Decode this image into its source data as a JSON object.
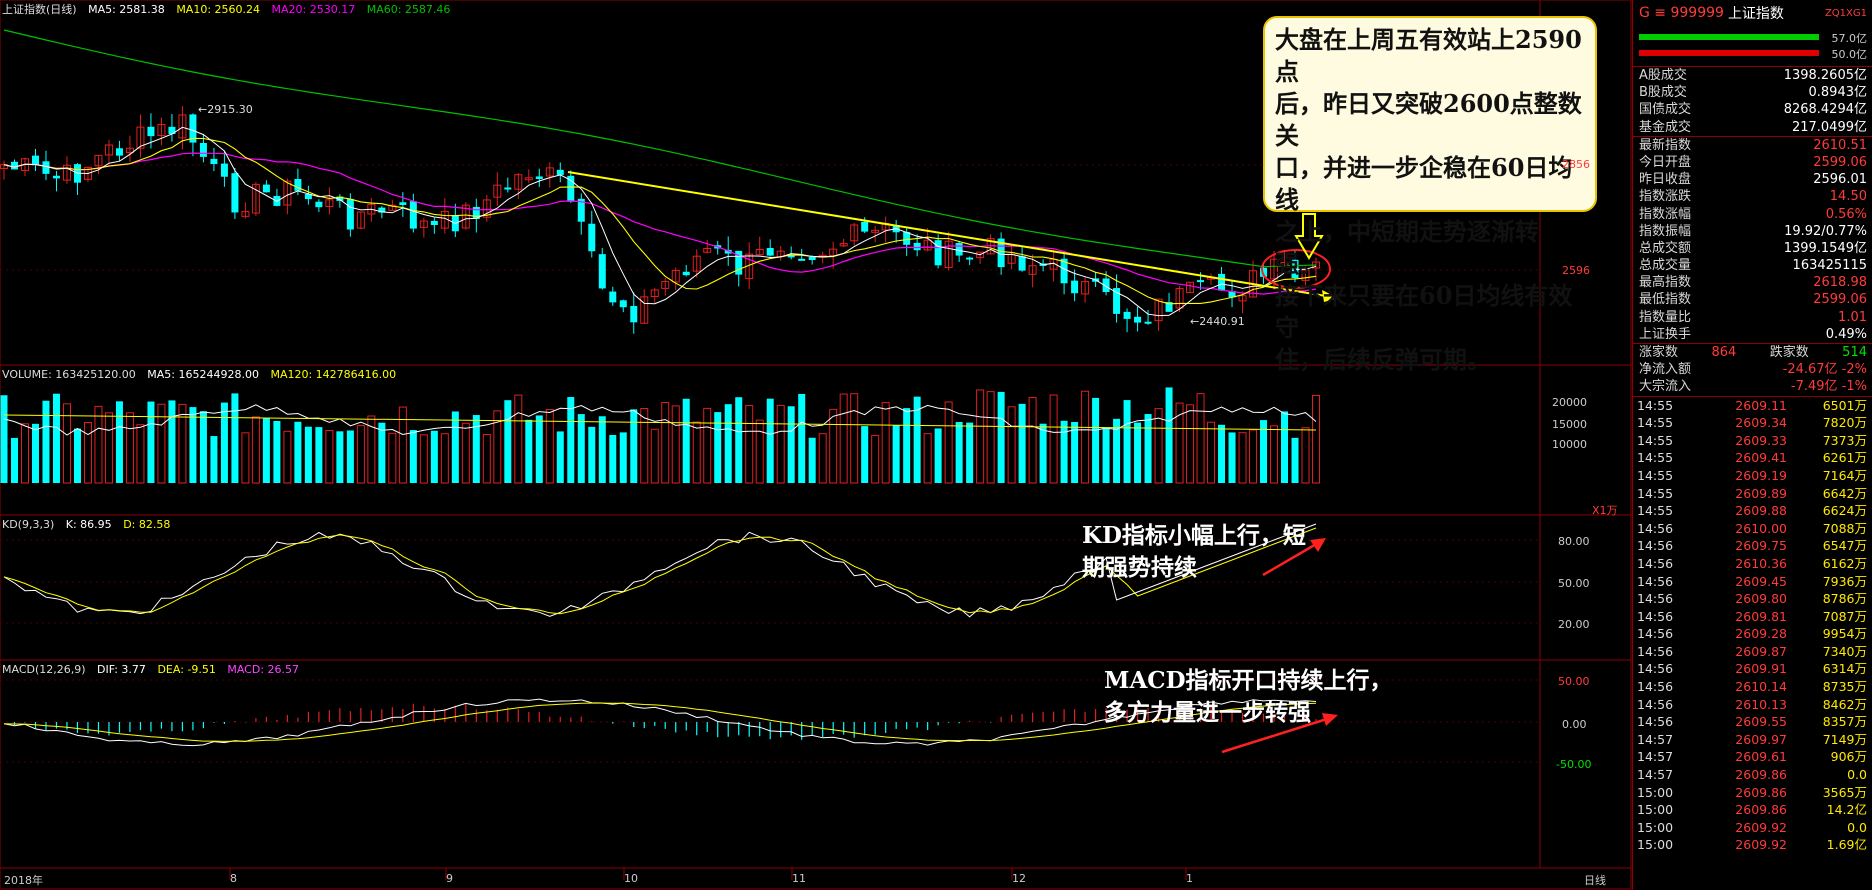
{
  "header": {
    "index_name": "上证指数(日线)",
    "ma5": "MA5: 2581.38",
    "ma10": "MA10: 2560.24",
    "ma20": "MA20: 2530.17",
    "ma60": "MA60: 2587.46",
    "volume": "VOLUME: 163425120.00",
    "vol_ma5": "MA5: 165244928.00",
    "vol_ma120": "MA120: 142786416.00",
    "kd_name": "KD(9,3,3)",
    "kd_k": "K: 86.95",
    "kd_d": "D: 82.58",
    "macd_name": "MACD(12,26,9)",
    "macd_dif": "DIF: 3.77",
    "macd_dea": "DEA: -9.51",
    "macd_macd": "MACD: 26.57"
  },
  "annotations": {
    "box": [
      "大盘在上周五有效站上2590点",
      "后，昨日又突破2600点整数关",
      "口，并进一步企稳在60日均线",
      "之上，中短期走势逐渐转强。",
      "接下来只要在60日均线有效守",
      "住，后续反弹可期。"
    ],
    "kd_note": [
      "KD指标小幅上行，短",
      "期强势持续"
    ],
    "macd_note": [
      "MACD指标开口持续上行，",
      "多方力量进一步转强"
    ],
    "high_label": "2915.30",
    "low_label": "2440.91"
  },
  "axes": {
    "price_ticks": [
      "2856",
      "2596"
    ],
    "volume_ticks": [
      "20000",
      "15000",
      "10000"
    ],
    "volume_unit": "X1万",
    "kd_ticks": [
      "80.00",
      "50.00",
      "20.00"
    ],
    "macd_ticks": [
      "50.00",
      "0.00",
      "-50.00"
    ],
    "month_labels": [
      "2018年",
      "8",
      "9",
      "10",
      "11",
      "12",
      "1"
    ],
    "period": "日线"
  },
  "colors": {
    "up": "#e02020",
    "down": "#00ffff",
    "ma5": "#ffffff",
    "ma10": "#ffff00",
    "ma20": "#ff00ff",
    "ma60": "#00c000",
    "trend": "#ffff00"
  },
  "chart_data": {
    "type": "candlestick",
    "title": "上证指数(日线)",
    "x_months": [
      "2018年",
      "8",
      "9",
      "10",
      "11",
      "12",
      "1"
    ],
    "price_range": [
      2440.91,
      2915.3
    ],
    "annotated_high": 2915.3,
    "annotated_low": 2440.91,
    "ma": {
      "MA5": 2581.38,
      "MA10": 2560.24,
      "MA20": 2530.17,
      "MA60": 2587.46
    },
    "volume": {
      "last": 163425120.0,
      "MA5": 165244928.0,
      "MA120": 142786416.0
    },
    "kd": {
      "K": 86.95,
      "D": 82.58,
      "ticks": [
        20,
        50,
        80
      ]
    },
    "macd": {
      "DIF": 3.77,
      "DEA": -9.51,
      "MACD": 26.57,
      "ticks": [
        -50,
        0,
        50
      ]
    }
  },
  "panel": {
    "code": "G ≡ 999999",
    "name": "上证指数",
    "tag": "ZQ1XG1",
    "bar_top": "57.0亿",
    "bar_bottom": "50.0亿",
    "rows1": [
      {
        "k": "A股成交",
        "v": "1398.2605亿",
        "c": "white"
      },
      {
        "k": "B股成交",
        "v": "0.8943亿",
        "c": "white"
      },
      {
        "k": "国债成交",
        "v": "8268.4294亿",
        "c": "white"
      },
      {
        "k": "基金成交",
        "v": "217.0499亿",
        "c": "white"
      }
    ],
    "rows2": [
      {
        "k": "最新指数",
        "v": "2610.51",
        "c": "red"
      },
      {
        "k": "今日开盘",
        "v": "2599.06",
        "c": "red"
      },
      {
        "k": "昨日收盘",
        "v": "2596.01",
        "c": "white"
      },
      {
        "k": "指数涨跌",
        "v": "14.50",
        "c": "red"
      },
      {
        "k": "指数涨幅",
        "v": "0.56%",
        "c": "red"
      },
      {
        "k": "指数振幅",
        "v": "19.92/0.77%",
        "c": "white"
      },
      {
        "k": "总成交额",
        "v": "1399.1549亿",
        "c": "white"
      },
      {
        "k": "总成交量",
        "v": "163425115",
        "c": "white"
      },
      {
        "k": "最高指数",
        "v": "2618.98",
        "c": "red"
      },
      {
        "k": "最低指数",
        "v": "2599.06",
        "c": "red"
      },
      {
        "k": "指数量比",
        "v": "1.01",
        "c": "red"
      },
      {
        "k": "上证换手",
        "v": "0.49%",
        "c": "white"
      }
    ],
    "updown": {
      "up_label": "涨家数",
      "up": "864",
      "down_label": "跌家数",
      "down": "514"
    },
    "flows": [
      {
        "k": "净流入额",
        "v": "-24.67亿",
        "p": "-2%"
      },
      {
        "k": "大宗流入",
        "v": "-7.49亿",
        "p": "-1%"
      }
    ],
    "ticks": [
      [
        "14:55",
        "2609.11",
        "6501万"
      ],
      [
        "14:55",
        "2609.34",
        "7820万"
      ],
      [
        "14:55",
        "2609.33",
        "7373万"
      ],
      [
        "14:55",
        "2609.41",
        "6261万"
      ],
      [
        "14:55",
        "2609.19",
        "7164万"
      ],
      [
        "14:55",
        "2609.89",
        "6642万"
      ],
      [
        "14:55",
        "2609.88",
        "6624万"
      ],
      [
        "14:56",
        "2610.00",
        "7088万"
      ],
      [
        "14:56",
        "2609.75",
        "6547万"
      ],
      [
        "14:56",
        "2610.36",
        "6162万"
      ],
      [
        "14:56",
        "2609.45",
        "7936万"
      ],
      [
        "14:56",
        "2609.80",
        "8786万"
      ],
      [
        "14:56",
        "2609.81",
        "7087万"
      ],
      [
        "14:56",
        "2609.28",
        "9954万"
      ],
      [
        "14:56",
        "2609.87",
        "7340万"
      ],
      [
        "14:56",
        "2609.91",
        "6314万"
      ],
      [
        "14:56",
        "2610.14",
        "8735万"
      ],
      [
        "14:56",
        "2610.13",
        "8462万"
      ],
      [
        "14:56",
        "2609.55",
        "8357万"
      ],
      [
        "14:57",
        "2609.97",
        "7149万"
      ],
      [
        "14:57",
        "2609.61",
        "906万"
      ],
      [
        "14:57",
        "2609.86",
        "0.0"
      ],
      [
        "15:00",
        "2609.86",
        "3565万"
      ],
      [
        "15:00",
        "2609.86",
        "14.2亿"
      ],
      [
        "15:00",
        "2609.92",
        "0.0"
      ],
      [
        "15:00",
        "2609.92",
        "1.69亿"
      ]
    ]
  }
}
